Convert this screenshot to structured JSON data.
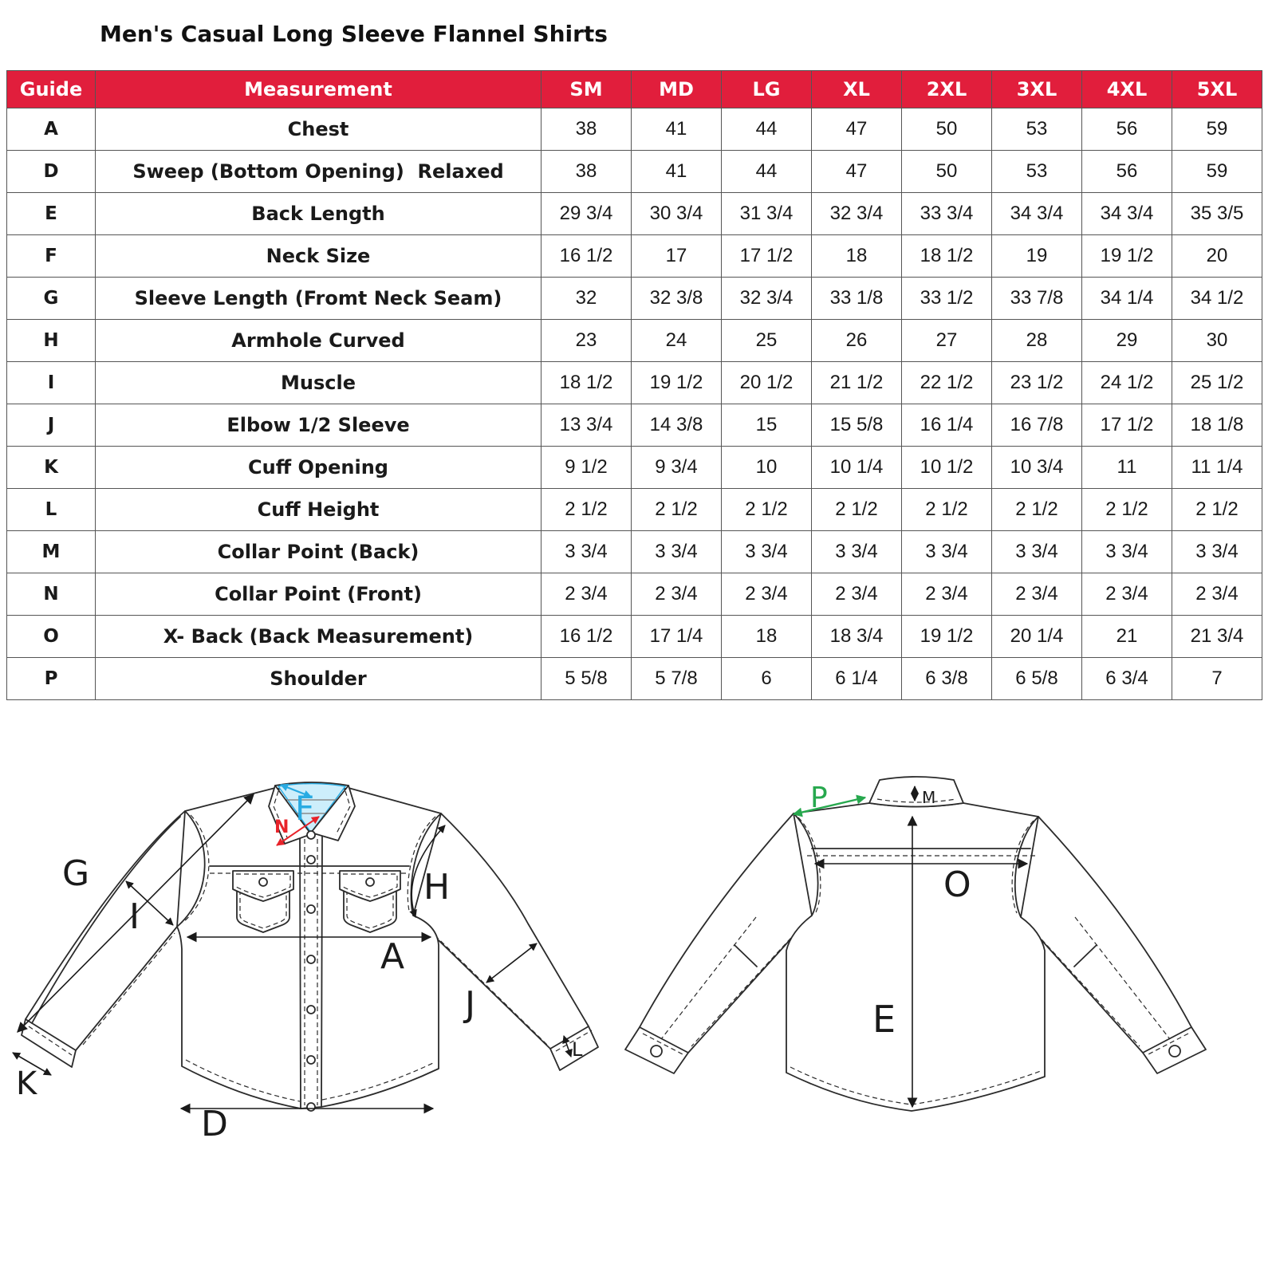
{
  "title": "Men's Casual Long Sleeve Flannel Shirts",
  "table": {
    "headers": [
      "Guide",
      "Measurement",
      "SM",
      "MD",
      "LG",
      "XL",
      "2XL",
      "3XL",
      "4XL",
      "5XL"
    ],
    "rows": [
      {
        "guide": "A",
        "name": "Chest",
        "values": [
          "38",
          "41",
          "44",
          "47",
          "50",
          "53",
          "56",
          "59"
        ]
      },
      {
        "guide": "D",
        "name": "Sweep (Bottom Opening)  Relaxed",
        "values": [
          "38",
          "41",
          "44",
          "47",
          "50",
          "53",
          "56",
          "59"
        ]
      },
      {
        "guide": "E",
        "name": "Back Length",
        "values": [
          "29 3/4",
          "30 3/4",
          "31 3/4",
          "32 3/4",
          "33 3/4",
          "34 3/4",
          "34 3/4",
          "35 3/5"
        ]
      },
      {
        "guide": "F",
        "name": "Neck Size",
        "values": [
          "16 1/2",
          "17",
          "17 1/2",
          "18",
          "18 1/2",
          "19",
          "19 1/2",
          "20"
        ]
      },
      {
        "guide": "G",
        "name": "Sleeve Length (Fromt Neck Seam)",
        "values": [
          "32",
          "32 3/8",
          "32 3/4",
          "33 1/8",
          "33 1/2",
          "33 7/8",
          "34 1/4",
          "34 1/2"
        ]
      },
      {
        "guide": "H",
        "name": "Armhole Curved",
        "values": [
          "23",
          "24",
          "25",
          "26",
          "27",
          "28",
          "29",
          "30"
        ]
      },
      {
        "guide": "I",
        "name": "Muscle",
        "values": [
          "18 1/2",
          "19 1/2",
          "20 1/2",
          "21 1/2",
          "22 1/2",
          "23 1/2",
          "24 1/2",
          "25 1/2"
        ]
      },
      {
        "guide": "J",
        "name": "Elbow 1/2 Sleeve",
        "values": [
          "13 3/4",
          "14 3/8",
          "15",
          "15 5/8",
          "16 1/4",
          "16 7/8",
          "17 1/2",
          "18 1/8"
        ]
      },
      {
        "guide": "K",
        "name": "Cuff Opening",
        "values": [
          "9 1/2",
          "9 3/4",
          "10",
          "10 1/4",
          "10 1/2",
          "10 3/4",
          "11",
          "11 1/4"
        ]
      },
      {
        "guide": "L",
        "name": "Cuff Height",
        "values": [
          "2 1/2",
          "2 1/2",
          "2 1/2",
          "2 1/2",
          "2 1/2",
          "2 1/2",
          "2 1/2",
          "2 1/2"
        ]
      },
      {
        "guide": "M",
        "name": "Collar Point (Back)",
        "values": [
          "3 3/4",
          "3 3/4",
          "3 3/4",
          "3 3/4",
          "3 3/4",
          "3 3/4",
          "3 3/4",
          "3 3/4"
        ]
      },
      {
        "guide": "N",
        "name": "Collar Point (Front)",
        "values": [
          "2 3/4",
          "2 3/4",
          "2 3/4",
          "2 3/4",
          "2 3/4",
          "2 3/4",
          "2 3/4",
          "2 3/4"
        ]
      },
      {
        "guide": "O",
        "name": "X- Back (Back Measurement)",
        "values": [
          "16 1/2",
          "17 1/4",
          "18",
          "18 3/4",
          "19 1/2",
          "20 1/4",
          "21",
          "21 3/4"
        ]
      },
      {
        "guide": "P",
        "name": "Shoulder",
        "values": [
          "5 5/8",
          "5 7/8",
          "6",
          "6 1/4",
          "6 3/8",
          "6 5/8",
          "6 3/4",
          "7"
        ]
      }
    ]
  },
  "diagram": {
    "front_view": {
      "name": "shirt front view",
      "labels": {
        "F": "F",
        "N": "N",
        "G": "G",
        "I": "I",
        "H": "H",
        "A": "A",
        "J": "J",
        "K": "K",
        "L": "L",
        "D": "D"
      }
    },
    "back_view": {
      "name": "shirt back view",
      "labels": {
        "P": "P",
        "M": "M",
        "O": "O",
        "E": "E"
      }
    }
  },
  "colors": {
    "header_bg": "#e11e3c",
    "header_text": "#ffffff",
    "accent_cyan": "#29abe2",
    "collar_fill": "#cdeefb",
    "accent_red": "#e8232a",
    "accent_green": "#27a84e",
    "line": "#2b2b2b"
  }
}
